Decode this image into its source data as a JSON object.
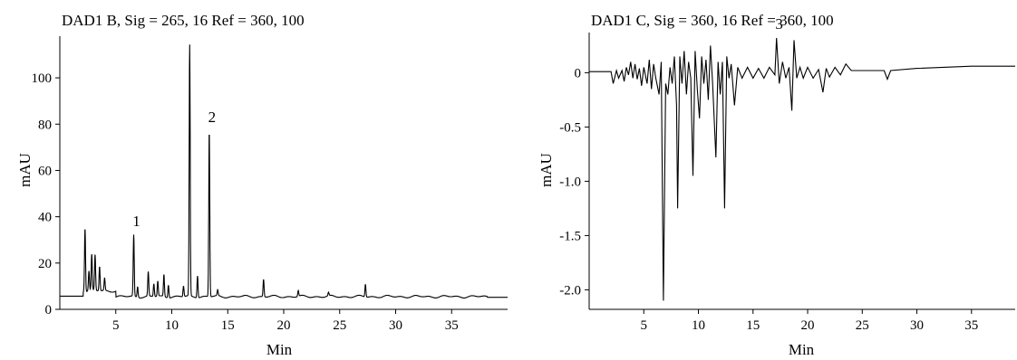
{
  "chart_data": [
    {
      "type": "line",
      "title": "DAD1 B, Sig = 265, 16 Ref = 360, 100",
      "xlabel": "Min",
      "ylabel": "mAU",
      "xlim": [
        0,
        40
      ],
      "ylim": [
        0,
        118
      ],
      "x_ticks": [
        5,
        10,
        15,
        20,
        25,
        30,
        35
      ],
      "y_ticks": [
        0,
        20,
        40,
        60,
        80,
        100
      ],
      "x_tick_labels": [
        "5",
        "10",
        "15",
        "20",
        "25",
        "30",
        "35"
      ],
      "y_tick_labels": [
        "0",
        "20",
        "40",
        "60",
        "80",
        "100"
      ],
      "grid": false,
      "baseline": 5.5,
      "peaks": [
        {
          "x": 2.25,
          "y": 33
        },
        {
          "x": 2.6,
          "y": 14
        },
        {
          "x": 2.85,
          "y": 21
        },
        {
          "x": 3.15,
          "y": 21
        },
        {
          "x": 3.55,
          "y": 16
        },
        {
          "x": 4.0,
          "y": 11
        },
        {
          "x": 6.6,
          "y": 32
        },
        {
          "x": 6.95,
          "y": 10
        },
        {
          "x": 7.9,
          "y": 16
        },
        {
          "x": 8.4,
          "y": 11
        },
        {
          "x": 8.75,
          "y": 12
        },
        {
          "x": 9.3,
          "y": 15
        },
        {
          "x": 9.7,
          "y": 11
        },
        {
          "x": 11.05,
          "y": 10
        },
        {
          "x": 11.6,
          "y": 114
        },
        {
          "x": 12.3,
          "y": 15
        },
        {
          "x": 13.35,
          "y": 77
        },
        {
          "x": 14.1,
          "y": 8
        },
        {
          "x": 18.2,
          "y": 13
        },
        {
          "x": 21.3,
          "y": 8
        },
        {
          "x": 24.0,
          "y": 7
        },
        {
          "x": 27.3,
          "y": 11
        }
      ],
      "annotations": [
        {
          "text": "1",
          "x": 6.6,
          "y": 32
        },
        {
          "text": "2",
          "x": 13.35,
          "y": 77
        }
      ]
    },
    {
      "type": "line",
      "title": "DAD1 C, Sig = 360, 16 Ref = 360, 100",
      "xlabel": "Min",
      "ylabel": "mAU",
      "xlim": [
        0,
        39
      ],
      "ylim": [
        -2.18,
        0.37
      ],
      "x_ticks": [
        5,
        10,
        15,
        20,
        25,
        30,
        35
      ],
      "y_ticks": [
        0,
        -0.5,
        -1.0,
        -1.5,
        -2.0
      ],
      "x_tick_labels": [
        "5",
        "10",
        "15",
        "20",
        "25",
        "30",
        "35"
      ],
      "y_tick_labels": [
        "0",
        "-0.5",
        "-1.0",
        "-1.5",
        "-2.0"
      ],
      "grid": false,
      "points": [
        [
          0,
          0.01
        ],
        [
          2.0,
          0.01
        ],
        [
          2.2,
          -0.1
        ],
        [
          2.5,
          0.02
        ],
        [
          2.7,
          -0.05
        ],
        [
          3.0,
          0.02
        ],
        [
          3.2,
          -0.08
        ],
        [
          3.4,
          0.05
        ],
        [
          3.6,
          -0.02
        ],
        [
          3.8,
          0.1
        ],
        [
          4.0,
          -0.05
        ],
        [
          4.2,
          0.08
        ],
        [
          4.4,
          -0.06
        ],
        [
          4.6,
          0.04
        ],
        [
          4.8,
          -0.12
        ],
        [
          5.0,
          0.05
        ],
        [
          5.3,
          -0.1
        ],
        [
          5.5,
          0.12
        ],
        [
          5.7,
          -0.15
        ],
        [
          5.9,
          0.08
        ],
        [
          6.1,
          -0.05
        ],
        [
          6.4,
          -0.2
        ],
        [
          6.6,
          0.1
        ],
        [
          6.8,
          -2.1
        ],
        [
          7.0,
          -0.1
        ],
        [
          7.2,
          -0.2
        ],
        [
          7.4,
          0.05
        ],
        [
          7.6,
          -0.1
        ],
        [
          7.8,
          0.15
        ],
        [
          8.0,
          -0.3
        ],
        [
          8.1,
          -1.25
        ],
        [
          8.3,
          0.15
        ],
        [
          8.5,
          -0.1
        ],
        [
          8.7,
          0.2
        ],
        [
          8.9,
          -0.2
        ],
        [
          9.1,
          0.1
        ],
        [
          9.3,
          -0.05
        ],
        [
          9.5,
          -0.95
        ],
        [
          9.7,
          0.2
        ],
        [
          9.9,
          -0.15
        ],
        [
          10.1,
          -0.42
        ],
        [
          10.3,
          0.15
        ],
        [
          10.5,
          -0.1
        ],
        [
          10.7,
          0.12
        ],
        [
          10.9,
          -0.25
        ],
        [
          11.1,
          0.25
        ],
        [
          11.3,
          -0.1
        ],
        [
          11.6,
          -0.78
        ],
        [
          11.8,
          0.1
        ],
        [
          12.0,
          -0.2
        ],
        [
          12.2,
          0.1
        ],
        [
          12.4,
          -1.25
        ],
        [
          12.6,
          0.15
        ],
        [
          12.8,
          -0.05
        ],
        [
          13.0,
          0.08
        ],
        [
          13.3,
          -0.3
        ],
        [
          13.6,
          0.05
        ],
        [
          14.0,
          -0.05
        ],
        [
          14.5,
          0.05
        ],
        [
          15.0,
          -0.05
        ],
        [
          15.5,
          0.04
        ],
        [
          16.0,
          -0.05
        ],
        [
          16.5,
          0.05
        ],
        [
          17.0,
          -0.02
        ],
        [
          17.15,
          0.32
        ],
        [
          17.4,
          -0.1
        ],
        [
          17.7,
          0.1
        ],
        [
          18.0,
          -0.05
        ],
        [
          18.3,
          0.05
        ],
        [
          18.55,
          -0.35
        ],
        [
          18.75,
          0.3
        ],
        [
          19.0,
          -0.05
        ],
        [
          19.3,
          0.05
        ],
        [
          19.6,
          -0.05
        ],
        [
          20.0,
          0.05
        ],
        [
          20.5,
          -0.05
        ],
        [
          21.0,
          0.03
        ],
        [
          21.4,
          -0.18
        ],
        [
          21.7,
          0.04
        ],
        [
          22.0,
          -0.04
        ],
        [
          22.5,
          0.05
        ],
        [
          23.0,
          -0.02
        ],
        [
          23.5,
          0.08
        ],
        [
          24.0,
          0.02
        ],
        [
          25.0,
          0.02
        ],
        [
          27.0,
          0.02
        ],
        [
          27.3,
          -0.06
        ],
        [
          27.6,
          0.02
        ],
        [
          30.0,
          0.04
        ],
        [
          35.0,
          0.06
        ],
        [
          39.0,
          0.06
        ]
      ],
      "annotations": [
        {
          "text": "3",
          "x": 17.15,
          "y": 0.32
        }
      ]
    }
  ]
}
